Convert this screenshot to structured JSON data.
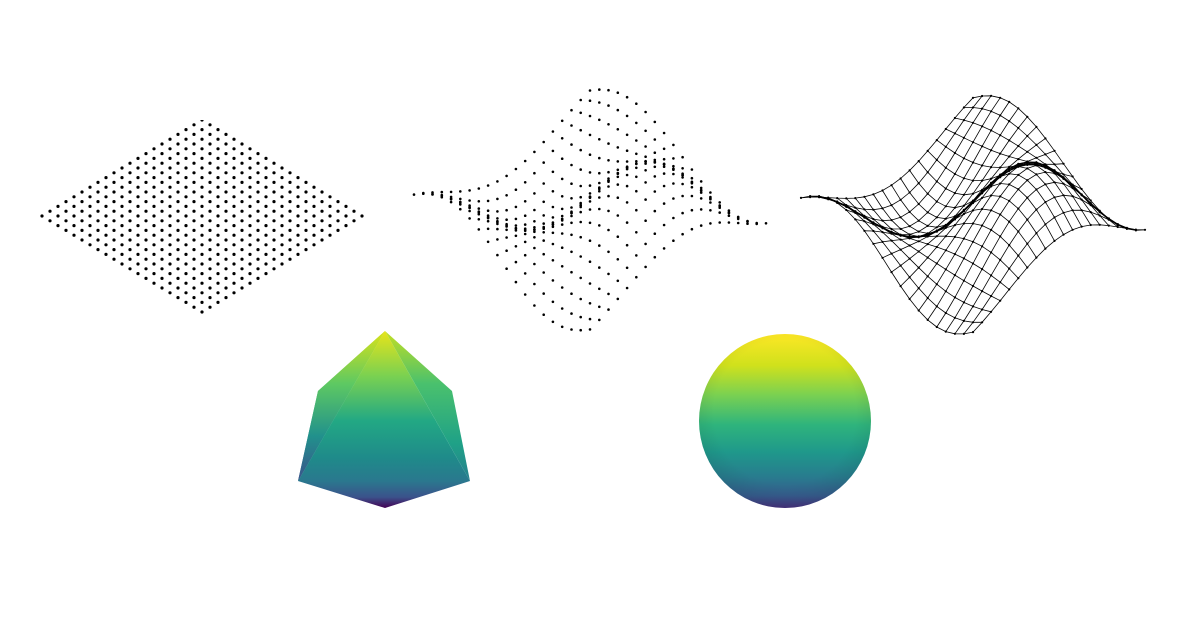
{
  "scene": {
    "background": "#ffffff",
    "figures": [
      {
        "name": "flat-point-grid",
        "kind": "point-cloud",
        "color": "#000000"
      },
      {
        "name": "wavy-point-cloud",
        "kind": "point-cloud",
        "color": "#000000"
      },
      {
        "name": "wireframe-surface",
        "kind": "wireframe-mesh",
        "color": "#000000"
      },
      {
        "name": "octahedron",
        "kind": "shaded-solid",
        "colormap": "viridis"
      },
      {
        "name": "sphere",
        "kind": "shaded-solid",
        "colormap": "viridis"
      }
    ],
    "colormap": {
      "dark": "#440154",
      "mid_dark": "#31688e",
      "mid": "#21918c",
      "mid_light": "#5ec962",
      "light": "#fde725"
    }
  }
}
